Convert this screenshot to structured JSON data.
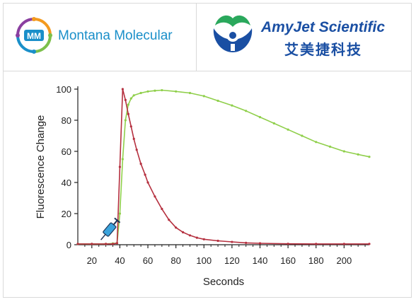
{
  "header": {
    "left_logo": {
      "brand": "Montana Molecular",
      "monogram": "MM",
      "colors": [
        "#8a3fa0",
        "#1a8fc9",
        "#7cc04b",
        "#f39a1e"
      ]
    },
    "right_logo": {
      "brand": "AmyJet Scientific",
      "brand_cn": "艾美捷科技",
      "colors": [
        "#2aa85c",
        "#1a4fa3"
      ]
    }
  },
  "chart_data": {
    "type": "line",
    "xlabel": "Seconds",
    "ylabel": "Fluorescence Change",
    "xlim": [
      10,
      218
    ],
    "ylim": [
      0,
      100
    ],
    "x_ticks": [
      20,
      40,
      60,
      80,
      100,
      120,
      140,
      160,
      180,
      200
    ],
    "y_ticks": [
      0,
      20,
      40,
      60,
      80,
      100
    ],
    "grid": false,
    "annotation": {
      "type": "syringe-icon",
      "x": 31,
      "y": 8
    },
    "series": [
      {
        "color": "#8fcf4a",
        "x": [
          10,
          20,
          30,
          35,
          38,
          40,
          42,
          44,
          46,
          48,
          50,
          55,
          60,
          65,
          70,
          80,
          90,
          100,
          110,
          120,
          130,
          140,
          150,
          160,
          170,
          180,
          190,
          200,
          210,
          218
        ],
        "y": [
          0.5,
          0.5,
          0.5,
          0.8,
          1,
          20,
          55,
          80,
          90,
          94,
          96,
          97.5,
          98.5,
          99,
          99.3,
          98.5,
          97.5,
          95.5,
          92.5,
          89.5,
          86,
          82,
          78,
          74,
          70,
          66,
          63,
          60,
          58,
          56.5
        ]
      },
      {
        "color": "#b5303f",
        "x": [
          10,
          20,
          30,
          35,
          38,
          40,
          42,
          44,
          46,
          48,
          50,
          52,
          55,
          58,
          60,
          65,
          70,
          75,
          80,
          85,
          90,
          95,
          100,
          110,
          120,
          130,
          140,
          160,
          180,
          200,
          218
        ],
        "y": [
          0.5,
          0.5,
          0.5,
          0.5,
          1,
          50,
          100,
          93,
          84,
          76,
          68,
          61,
          52,
          45,
          40,
          31,
          23,
          16,
          11,
          8,
          6,
          4.5,
          3.5,
          2.5,
          1.8,
          1.2,
          0.9,
          0.6,
          0.5,
          0.5,
          0.5
        ]
      }
    ]
  }
}
